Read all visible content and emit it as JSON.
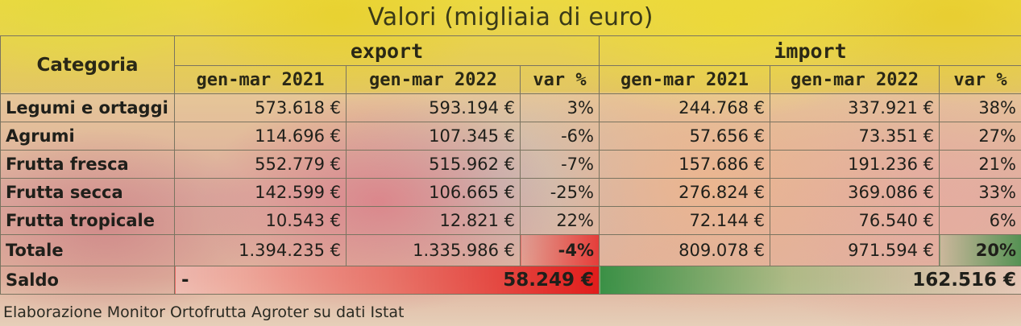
{
  "title": "Valori (migliaia di euro)",
  "header": {
    "category_label": "Categoria",
    "export_label": "export",
    "import_label": "import",
    "sub": [
      "gen-mar 2021",
      "gen-mar 2022",
      "var %",
      "gen-mar 2021",
      "gen-mar 2022",
      "var %"
    ]
  },
  "rows": [
    {
      "label": "Legumi e ortaggi",
      "exp2021": "573.618 €",
      "exp2022": "593.194 €",
      "expvar": "3%",
      "imp2021": "244.768 €",
      "imp2022": "337.921 €",
      "impvar": "38%"
    },
    {
      "label": "Agrumi",
      "exp2021": "114.696 €",
      "exp2022": "107.345 €",
      "expvar": "-6%",
      "imp2021": "57.656 €",
      "imp2022": "73.351 €",
      "impvar": "27%"
    },
    {
      "label": "Frutta fresca",
      "exp2021": "552.779 €",
      "exp2022": "515.962 €",
      "expvar": "-7%",
      "imp2021": "157.686 €",
      "imp2022": "191.236 €",
      "impvar": "21%"
    },
    {
      "label": "Frutta secca",
      "exp2021": "142.599 €",
      "exp2022": "106.665 €",
      "expvar": "-25%",
      "imp2021": "276.824 €",
      "imp2022": "369.086 €",
      "impvar": "33%"
    },
    {
      "label": "Frutta tropicale",
      "exp2021": "10.543 €",
      "exp2022": "12.821 €",
      "expvar": "22%",
      "imp2021": "72.144 €",
      "imp2022": "76.540 €",
      "impvar": "6%"
    }
  ],
  "total": {
    "label": "Totale",
    "exp2021": "1.394.235 €",
    "exp2022": "1.335.986 €",
    "expvar": "-4%",
    "imp2021": "809.078 €",
    "imp2022": "971.594 €",
    "impvar": "20%"
  },
  "saldo": {
    "label": "Saldo",
    "export_sign": "-",
    "export_value": "58.249 €",
    "import_value": "162.516 €"
  },
  "source": "Elaborazione Monitor Ortofrutta Agroter su dati Istat",
  "colors": {
    "negative_highlight": "#e62a2a",
    "positive_highlight": "#3c8c46",
    "title_band": "#e6d83c"
  }
}
